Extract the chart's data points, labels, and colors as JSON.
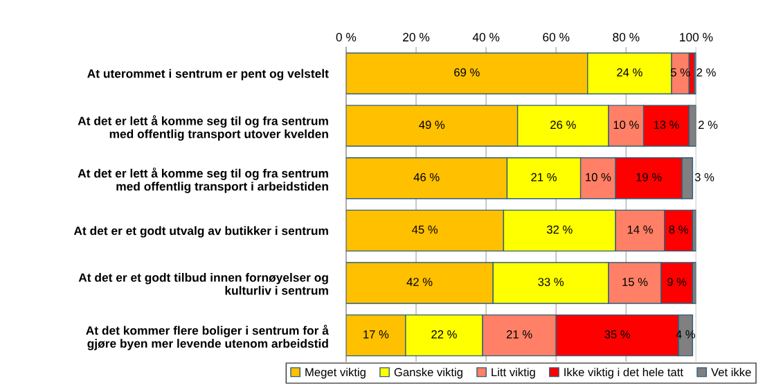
{
  "chart_data": {
    "type": "bar",
    "orientation": "horizontal",
    "stacked": true,
    "categories": [
      "At uterommet i sentrum er pent og velstelt",
      "At det er lett å komme seg til og fra sentrum\nmed offentlig transport utover kvelden",
      "At det er lett å komme seg til og fra sentrum\nmed offentlig transport i arbeidstiden",
      "At det er et godt utvalg av butikker i sentrum",
      "At det er et godt tilbud innen fornøyelser og\nkulturliv i sentrum",
      "At det kommer flere boliger i sentrum for å\ngjøre byen mer levende utenom arbeidstid"
    ],
    "series": [
      {
        "name": "Meget viktig",
        "color": "#ffc000",
        "values": [
          69,
          49,
          46,
          45,
          42,
          17
        ],
        "value_labels": [
          "69 %",
          "49 %",
          "46 %",
          "45 %",
          "42 %",
          "17 %"
        ]
      },
      {
        "name": "Ganske viktig",
        "color": "#ffff00",
        "values": [
          24,
          26,
          21,
          32,
          33,
          22
        ],
        "value_labels": [
          "24 %",
          "26 %",
          "21 %",
          "32 %",
          "33 %",
          "22 %"
        ]
      },
      {
        "name": "Litt viktig",
        "color": "#ff8066",
        "values": [
          5,
          10,
          10,
          14,
          15,
          21
        ],
        "value_labels": [
          "5 %",
          "10 %",
          "10 %",
          "14 %",
          "15 %",
          "21 %"
        ]
      },
      {
        "name": "Ikke viktig i det hele tatt",
        "color": "#ff0000",
        "values": [
          1.5,
          13,
          19,
          8,
          9,
          35
        ],
        "value_labels": [
          "2 %",
          "13 %",
          "19 %",
          "8 %",
          "9 %",
          "35 %"
        ]
      },
      {
        "name": "Vet ikke",
        "color": "#808080",
        "values": [
          0.5,
          2,
          3,
          1,
          1,
          4
        ],
        "value_labels": [
          null,
          "2 %",
          "3 %",
          null,
          null,
          "4 %"
        ]
      }
    ],
    "xlim": [
      0,
      100
    ],
    "xticks": [
      {
        "value": 0,
        "label": "0 %"
      },
      {
        "value": 20,
        "label": "20 %"
      },
      {
        "value": 40,
        "label": "40 %"
      },
      {
        "value": 60,
        "label": "60 %"
      },
      {
        "value": 80,
        "label": "80 %"
      },
      {
        "value": 100,
        "label": "100 %"
      }
    ],
    "grid": "x",
    "legend": "bottom"
  }
}
